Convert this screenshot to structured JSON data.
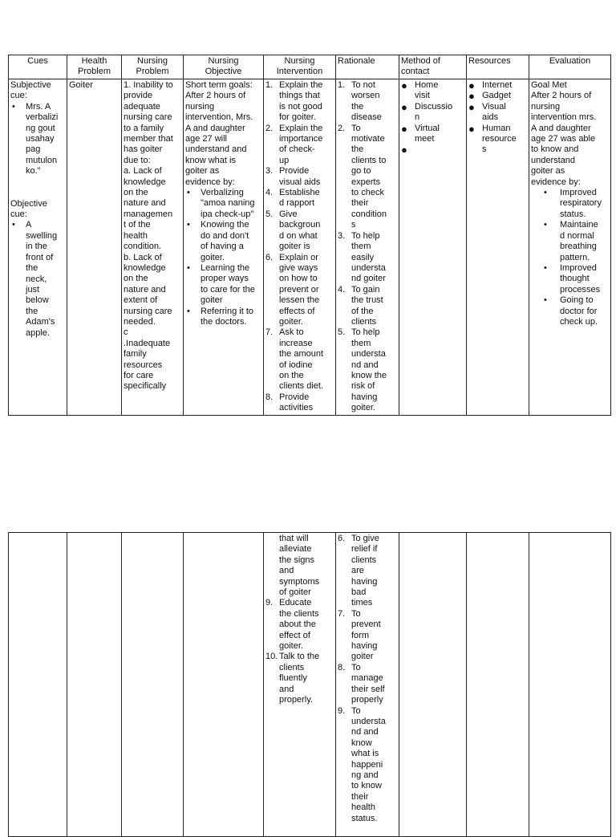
{
  "headers": [
    "Cues",
    "Health\nProblem",
    "Nursing\nProblem",
    "Nursing\nObjective",
    "Nursing\nIntervention",
    "Rationale",
    "Method        of\ncontact",
    "Resources",
    "Evaluation"
  ],
  "table1": [
    [
      {
        "t": "p",
        "text": "Subjective\ncue:"
      },
      {
        "t": "b",
        "m": "•",
        "text": "Mrs.   A\nverbalizi\nng  gout\nusahay\npag\nmutulon\nko.\""
      },
      {
        "t": "gap"
      },
      {
        "t": "p",
        "text": "Objective\ncue:"
      },
      {
        "t": "b",
        "m": "•",
        "text": "A\nswelling\nin     the\nfront   of\nthe\nneck,\njust\nbelow\nthe\nAdam's\napple."
      }
    ],
    [
      {
        "t": "p",
        "text": "Goiter"
      }
    ],
    [
      {
        "t": "p",
        "text": "1. Inability to\nprovide\nadequate\nnursing care\nto a family\nmember that\nhas    goiter\ndue to:\na.  Lack  of\nknowledge\non           the\nnature   and\nmanagemen\nt    of    the\nhealth\ncondition.\nb.  Lack  of\nknowledge\non           the\nnature   and\nextent      of\nnursing care\nneeded.\nc\n.Inadequate\nfamily\nresources\nfor         care\nspecifically"
      }
    ],
    [
      {
        "t": "p",
        "text": "Short term goals:\nAfter 2 hours of\nnursing\nintervention, Mrs.\nA  and  daughter\nage    27     will\nunderstand  and\nknow   what   is\ngoiter            as\nevidence by:"
      },
      {
        "t": "b",
        "m": "•",
        "text": "Verbalizing\n\"amoa naning\nipa check-up\""
      },
      {
        "t": "b",
        "m": "•",
        "text": "Knowing  the\ndo and don't\nof  having  a\ngoiter."
      },
      {
        "t": "b",
        "m": "•",
        "text": "Learning  the\nproper  ways\nto care for the\ngoiter"
      },
      {
        "t": "b",
        "m": "•",
        "text": "Referring it to\nthe doctors."
      }
    ],
    [
      {
        "t": "n",
        "m": "1.",
        "text": "Explain the\nthings  that\nis not good\nfor goiter."
      },
      {
        "t": "n",
        "m": "2.",
        "text": "Explain the\nimportance\nof    check-\nup"
      },
      {
        "t": "n",
        "m": "3.",
        "text": "Provide\nvisual aids"
      },
      {
        "t": "n",
        "m": "4.",
        "text": "Establishe\nd rapport"
      },
      {
        "t": "n",
        "m": "5.",
        "text": "Give\nbackgroun\nd  on  what\ngoiter is"
      },
      {
        "t": "n",
        "m": "6.",
        "text": "Explain  or\ngive  ways\non  how  to\nprevent  or\nlessen  the\neffects   of\ngoiter."
      },
      {
        "t": "n",
        "m": "7.",
        "text": "Ask         to\nincrease\nthe amount\nof     iodine\non          the\nclients diet."
      },
      {
        "t": "n",
        "m": "8.",
        "text": "Provide\nactivities"
      }
    ],
    [
      {
        "t": "n",
        "m": "1.",
        "text": "To      not\nworsen\nthe\ndisease"
      },
      {
        "t": "n",
        "m": "2.",
        "text": "To\nmotivate\nthe\nclients to\ngo        to\nexperts\nto  check\ntheir\ncondition\ns"
      },
      {
        "t": "n",
        "m": "3.",
        "text": "To    help\nthem\neasily\nundersta\nnd goiter"
      },
      {
        "t": "n",
        "m": "4.",
        "text": "To    gain\nthe   trust\nof       the\nclients"
      },
      {
        "t": "n",
        "m": "5.",
        "text": "To    help\nthem\nundersta\nnd     and\nknow the\nrisk      of\nhaving\ngoiter."
      }
    ],
    [
      {
        "t": "d",
        "m": "●",
        "text": "Home\nvisit"
      },
      {
        "t": "d",
        "m": "●",
        "text": "Discussio\nn"
      },
      {
        "t": "d",
        "m": "●",
        "text": "Virtual\nmeet"
      },
      {
        "t": "d",
        "m": "●",
        "text": ""
      }
    ],
    [
      {
        "t": "d",
        "m": "●",
        "text": "Internet"
      },
      {
        "t": "d",
        "m": "●",
        "text": "Gadget"
      },
      {
        "t": "d",
        "m": "●",
        "text": "Visual\naids"
      },
      {
        "t": "d",
        "m": "●",
        "text": "Human\nresource\ns"
      }
    ],
    [
      {
        "t": "p",
        "text": "Goal Met\nAfter 2 hours of\nnursing\nintervention mrs.\nA  and  daughter\nage 27 was able\nto    know    and\nunderstand\ngoiter            as\nevidence by:"
      },
      {
        "t": "eb",
        "m": "•",
        "text": " Improved\nrespiratory\nstatus."
      },
      {
        "t": "eb",
        "m": "•",
        "text": " Maintaine\nd normal\nbreathing\npattern."
      },
      {
        "t": "eb",
        "m": "•",
        "text": " Improved\nthought\nprocesses"
      },
      {
        "t": "eb",
        "m": "•",
        "text": " Going to\ndoctor for\ncheck up."
      }
    ]
  ],
  "table2": {
    "intervention": [
      {
        "t": "n",
        "m": "",
        "text": "that       will\nalleviate\nthe    signs\nand\nsymptoms\nof goiter"
      },
      {
        "t": "n",
        "m": "9.",
        "text": "Educate\nthe  clients\nabout   the\neffect     of\ngoiter."
      },
      {
        "t": "n",
        "m": "10.",
        "text": "Talk to the\nclients\nfluently\nand\nproperly."
      }
    ],
    "rationale": [
      {
        "t": "n",
        "m": "6.",
        "text": "To    give\nrelief     if\nclients\nare\nhaving\nbad\ntimes"
      },
      {
        "t": "n",
        "m": "7.",
        "text": "To\nprevent\nform\nhaving\ngoiter"
      },
      {
        "t": "n",
        "m": "8.",
        "text": "To\nmanage\ntheir self\nproperly"
      },
      {
        "t": "n",
        "m": "9.",
        "text": "To\nundersta\nnd     and\nknow\nwhat     is\nhappeni\nng     and\nto   know\ntheir\nhealth\nstatus."
      }
    ]
  }
}
